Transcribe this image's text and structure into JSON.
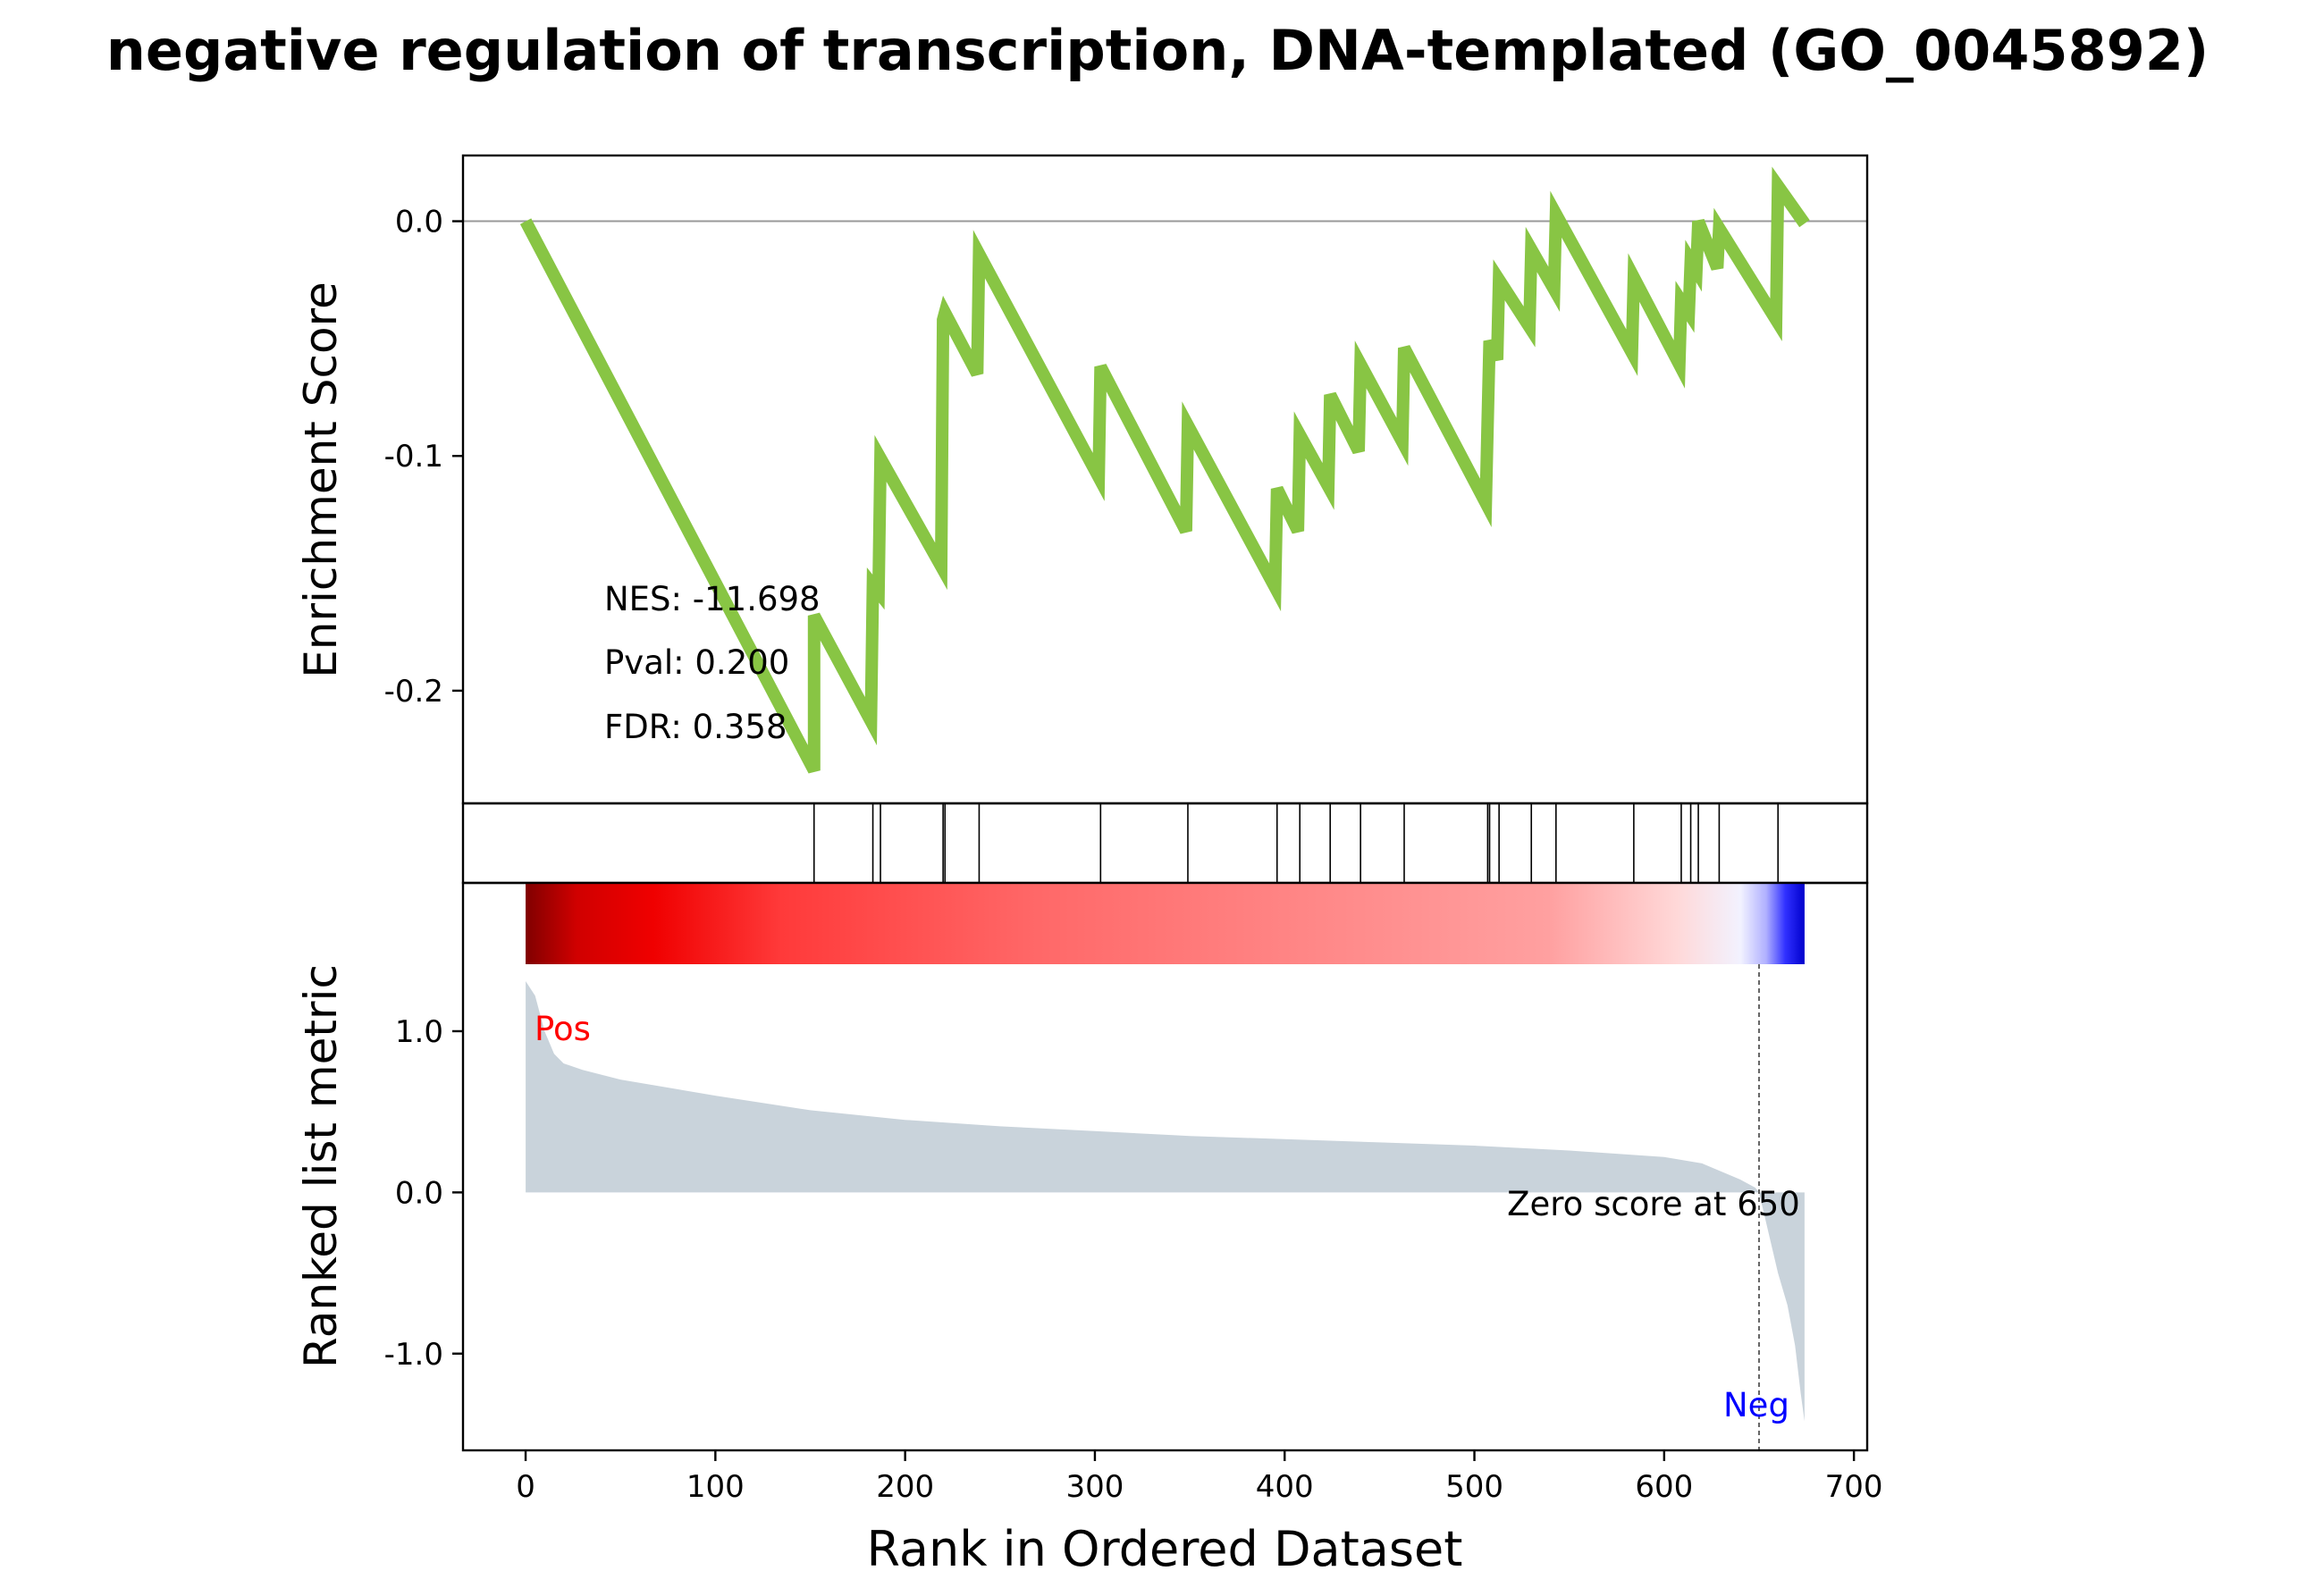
{
  "chart_data": {
    "type": "line",
    "title": "negative regulation of transcription, DNA-templated (GO_0045892)",
    "xlabel": "Rank in Ordered Dataset",
    "xlim": [
      -33,
      707
    ],
    "xticks": [
      0,
      100,
      200,
      300,
      400,
      500,
      600,
      700
    ],
    "n_genes": 674,
    "colors": {
      "es_line": "#88c544",
      "metric_fill": "#c9d3db",
      "pos": "#ff0000",
      "neg": "#0000ff"
    },
    "enrichment": {
      "ylabel": "Enrichment Score",
      "ylim": [
        -0.248,
        0.028
      ],
      "yticks": [
        0.0,
        -0.1,
        -0.2
      ],
      "ytick_labels": [
        "0.0",
        "-0.1",
        "-0.2"
      ],
      "zero_line": true,
      "points": [
        [
          0,
          0.0
        ],
        [
          152,
          -0.234
        ],
        [
          152,
          -0.168
        ],
        [
          182,
          -0.213
        ],
        [
          183,
          -0.155
        ],
        [
          186,
          -0.158
        ],
        [
          187,
          -0.101
        ],
        [
          219,
          -0.147
        ],
        [
          220,
          -0.042
        ],
        [
          221,
          -0.039
        ],
        [
          238,
          -0.065
        ],
        [
          239,
          -0.014
        ],
        [
          302,
          -0.109
        ],
        [
          303,
          -0.062
        ],
        [
          348,
          -0.132
        ],
        [
          349,
          -0.087
        ],
        [
          395,
          -0.156
        ],
        [
          396,
          -0.114
        ],
        [
          407,
          -0.132
        ],
        [
          408,
          -0.091
        ],
        [
          423,
          -0.113
        ],
        [
          424,
          -0.074
        ],
        [
          439,
          -0.098
        ],
        [
          440,
          -0.061
        ],
        [
          462,
          -0.094
        ],
        [
          463,
          -0.054
        ],
        [
          506,
          -0.12
        ],
        [
          507,
          -0.085
        ],
        [
          508,
          -0.051
        ],
        [
          512,
          -0.059
        ],
        [
          513,
          -0.025
        ],
        [
          529,
          -0.045
        ],
        [
          530,
          -0.012
        ],
        [
          542,
          -0.029
        ],
        [
          543,
          0.003
        ],
        [
          583,
          -0.056
        ],
        [
          584,
          -0.024
        ],
        [
          608,
          -0.061
        ],
        [
          609,
          -0.034
        ],
        [
          613,
          -0.039
        ],
        [
          614,
          -0.017
        ],
        [
          617,
          -0.021
        ],
        [
          618,
          0.0
        ],
        [
          628,
          -0.02
        ],
        [
          629,
          -0.003
        ],
        [
          659,
          -0.042
        ],
        [
          660,
          0.015
        ],
        [
          674,
          -0.001
        ]
      ],
      "annotations": {
        "nes": "NES: -11.698",
        "pval": "Pval: 0.200",
        "fdr": "FDR: 0.358"
      }
    },
    "hits": [
      152,
      183,
      187,
      220,
      221,
      239,
      303,
      349,
      396,
      408,
      424,
      440,
      463,
      507,
      508,
      513,
      530,
      543,
      584,
      609,
      614,
      618,
      629,
      660
    ],
    "ranked_metric": {
      "ylabel": "Ranked list metric",
      "ylim": [
        -1.6,
        1.92
      ],
      "yticks": [
        1.0,
        0.0,
        -1.0
      ],
      "ytick_labels": [
        "1.0",
        "0.0",
        "-1.0"
      ],
      "points": [
        [
          0,
          1.31
        ],
        [
          5,
          1.22
        ],
        [
          10,
          1.0
        ],
        [
          15,
          0.86
        ],
        [
          20,
          0.8
        ],
        [
          30,
          0.76
        ],
        [
          50,
          0.7
        ],
        [
          100,
          0.6
        ],
        [
          150,
          0.51
        ],
        [
          200,
          0.45
        ],
        [
          250,
          0.41
        ],
        [
          300,
          0.38
        ],
        [
          350,
          0.35
        ],
        [
          400,
          0.33
        ],
        [
          450,
          0.31
        ],
        [
          500,
          0.29
        ],
        [
          550,
          0.26
        ],
        [
          600,
          0.22
        ],
        [
          620,
          0.18
        ],
        [
          630,
          0.13
        ],
        [
          640,
          0.08
        ],
        [
          648,
          0.03
        ],
        [
          650,
          0.0
        ],
        [
          655,
          -0.25
        ],
        [
          660,
          -0.5
        ],
        [
          665,
          -0.7
        ],
        [
          669,
          -0.95
        ],
        [
          672,
          -1.25
        ],
        [
          674,
          -1.42
        ]
      ],
      "zero_label": "Zero score at 650",
      "zero_at": 650,
      "pos_label": "Pos",
      "neg_label": "Neg"
    }
  }
}
